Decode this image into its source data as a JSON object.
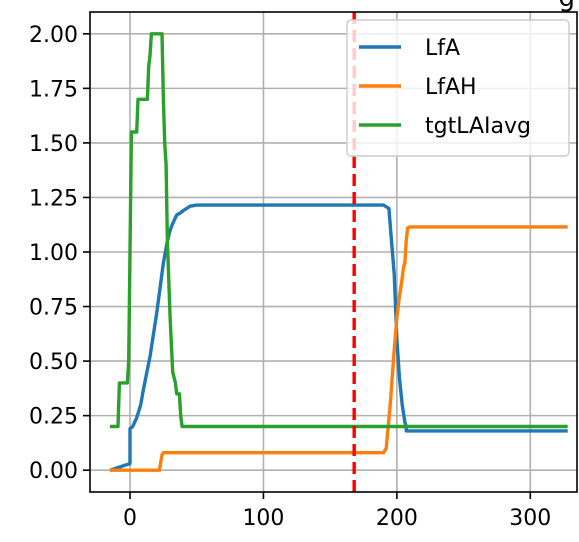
{
  "chart_data": {
    "type": "line",
    "title": "g",
    "xlim": [
      -30,
      335
    ],
    "ylim": [
      -0.1,
      2.1
    ],
    "xticks": [
      0,
      100,
      200,
      300
    ],
    "yticks": [
      0.0,
      0.25,
      0.5,
      0.75,
      1.0,
      1.25,
      1.5,
      1.75,
      2.0
    ],
    "xtick_labels": [
      "0",
      "100",
      "200",
      "300"
    ],
    "ytick_labels": [
      "0.00",
      "0.25",
      "0.50",
      "0.75",
      "1.00",
      "1.25",
      "1.50",
      "1.75",
      "2.00"
    ],
    "grid": true,
    "legend_position": "top-right",
    "vline": {
      "x": 168,
      "color": "#ff0000",
      "style": "dashed"
    },
    "series": [
      {
        "name": "LfA",
        "color": "#1f77b4",
        "x": [
          -15,
          -5,
          0,
          0,
          2,
          5,
          8,
          10,
          15,
          20,
          25,
          28,
          30,
          32,
          35,
          38,
          40,
          45,
          50,
          60,
          80,
          100,
          150,
          190,
          194,
          196,
          198,
          200,
          202,
          204,
          206,
          207,
          207,
          210,
          250,
          300,
          328
        ],
        "y": [
          0.0,
          0.02,
          0.03,
          0.19,
          0.2,
          0.24,
          0.3,
          0.37,
          0.52,
          0.72,
          0.95,
          1.05,
          1.1,
          1.13,
          1.17,
          1.18,
          1.19,
          1.21,
          1.215,
          1.215,
          1.215,
          1.215,
          1.215,
          1.215,
          1.2,
          1.05,
          0.9,
          0.6,
          0.42,
          0.3,
          0.22,
          0.2,
          0.18,
          0.18,
          0.18,
          0.18,
          0.18
        ]
      },
      {
        "name": "LfAH",
        "color": "#ff7f0e",
        "x": [
          -15,
          0,
          22,
          24,
          25,
          40,
          100,
          150,
          180,
          190,
          192,
          195,
          198,
          200,
          202,
          204,
          205,
          206,
          207,
          208,
          210,
          250,
          300,
          328
        ],
        "y": [
          0.0,
          0.0,
          0.0,
          0.07,
          0.08,
          0.08,
          0.08,
          0.08,
          0.08,
          0.08,
          0.1,
          0.3,
          0.55,
          0.7,
          0.8,
          0.88,
          0.93,
          0.95,
          1.05,
          1.11,
          1.115,
          1.115,
          1.115,
          1.115
        ]
      },
      {
        "name": "tgtLAIavg",
        "color": "#2ca02c",
        "x": [
          -15,
          -9,
          -8,
          -2,
          -1,
          0,
          1,
          5,
          6,
          13,
          14,
          15,
          16,
          17,
          20,
          24,
          25,
          26,
          27,
          28,
          30,
          32,
          34,
          35,
          37,
          38,
          39,
          40,
          100,
          200,
          250,
          300,
          328
        ],
        "y": [
          0.2,
          0.2,
          0.4,
          0.4,
          0.5,
          1.0,
          1.55,
          1.55,
          1.7,
          1.7,
          1.85,
          1.9,
          2.0,
          2.0,
          2.0,
          2.0,
          1.7,
          1.5,
          1.4,
          1.05,
          0.7,
          0.45,
          0.4,
          0.35,
          0.35,
          0.25,
          0.2,
          0.2,
          0.2,
          0.2,
          0.2,
          0.2,
          0.2
        ]
      }
    ]
  }
}
